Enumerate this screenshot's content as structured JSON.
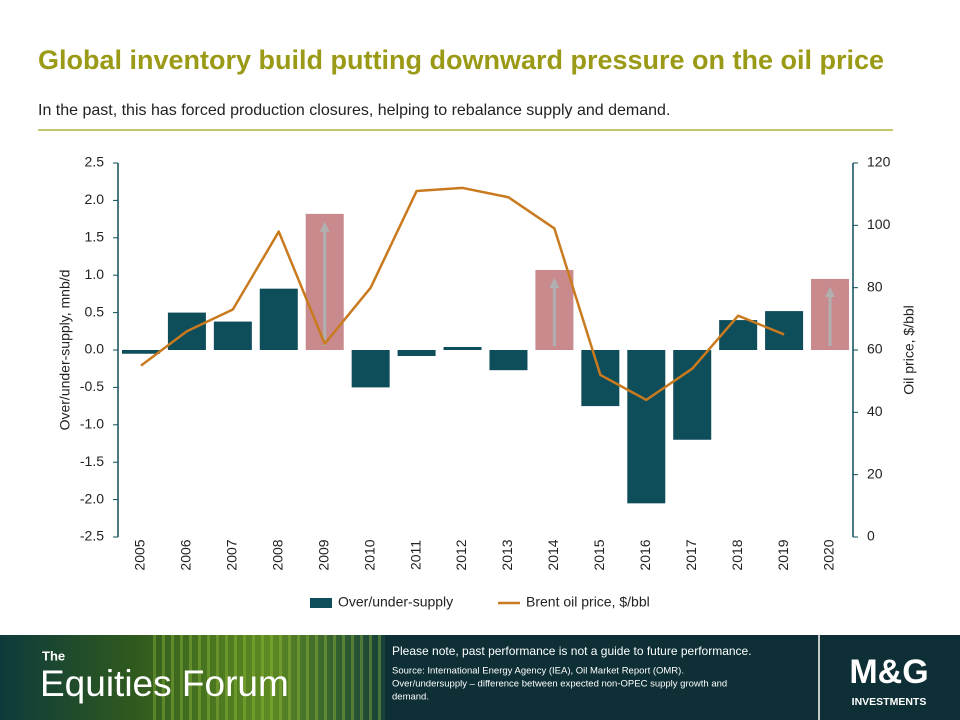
{
  "chart_data": {
    "type": "bar",
    "title": "Global inventory build putting downward pressure on the oil price",
    "subtitle": "In the past, this has forced production closures, helping to rebalance supply and demand.",
    "categories": [
      "2005",
      "2006",
      "2007",
      "2008",
      "2009",
      "2010",
      "2011",
      "2012",
      "2013",
      "2014",
      "2015",
      "2016",
      "2017",
      "2018",
      "2019",
      "2020"
    ],
    "series": [
      {
        "name": "Over/under-supply",
        "type": "bar",
        "color": "#0e4d5a",
        "colors": [
          "#0e4d5a",
          "#0e4d5a",
          "#0e4d5a",
          "#0e4d5a",
          "#c98a8e",
          "#0e4d5a",
          "#0e4d5a",
          "#0e4d5a",
          "#0e4d5a",
          "#c98a8e",
          "#0e4d5a",
          "#0e4d5a",
          "#0e4d5a",
          "#0e4d5a",
          "#0e4d5a",
          "#c98a8e"
        ],
        "values": [
          -0.05,
          0.5,
          0.38,
          0.82,
          1.82,
          -0.5,
          -0.08,
          0.04,
          -0.27,
          1.07,
          -0.75,
          -2.05,
          -1.2,
          0.4,
          0.52,
          0.95
        ]
      },
      {
        "name": "Brent oil price, $/bbl",
        "type": "line",
        "axis": "y2",
        "color": "#c97a1e",
        "values": [
          55,
          66,
          73,
          98,
          62,
          80,
          111,
          112,
          109,
          99,
          52,
          44,
          54,
          71,
          65,
          null
        ]
      }
    ],
    "ylabel": "Over/under-supply,  mnb/d",
    "y2label": "Oil price, $/bbl",
    "ylim": [
      -2.5,
      2.5
    ],
    "yticks": [
      -2.5,
      {
        "value": -2,
        "label": "-2.0"
      },
      -1.5,
      {
        "value": -1,
        "label": "-1.0"
      },
      -0.5,
      {
        "value": 0,
        "label": "0.0"
      },
      0.5,
      {
        "value": 1,
        "label": "1.0"
      },
      1.5,
      {
        "value": 2,
        "label": "2.0"
      },
      2.5
    ],
    "y2lim": [
      0,
      120
    ],
    "y2ticks": [
      0,
      20,
      40,
      60,
      80,
      100,
      120
    ],
    "legend": "bottom"
  },
  "footer": {
    "brand_small": "The",
    "brand": "Equities Forum",
    "disclaimer": "Please note, past performance  is not a guide to future performance.",
    "source": [
      "Source: International Energy Agency (IEA), Oil Market Report (OMR).",
      "Over/undersupply – difference between expected non-OPEC supply growth and",
      "demand."
    ],
    "logo": "M&G",
    "logo_sub": "INVESTMENTS"
  }
}
